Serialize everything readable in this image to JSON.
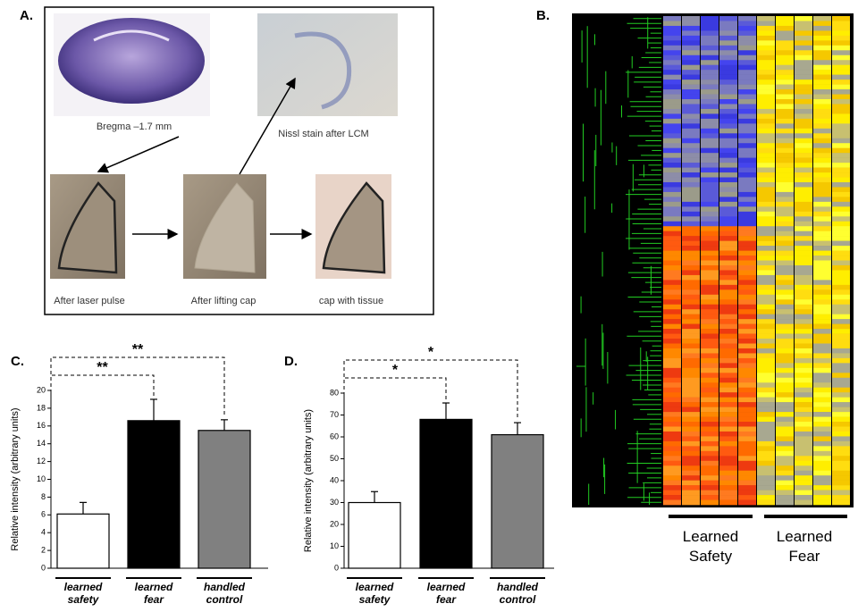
{
  "panel_a": {
    "label": "A.",
    "captions": [
      "Bregma –1.7 mm",
      "Nissl stain after LCM",
      "After laser pulse",
      "After lifting cap",
      "cap with tissue"
    ]
  },
  "panel_b": {
    "label": "B.",
    "groups": [
      "Learned Safety",
      "Learned Fear"
    ]
  },
  "chart_data": [
    {
      "type": "bar",
      "panel_label": "C.",
      "y_label": "Relative intensity (arbitrary units)",
      "categories": [
        "learned safety",
        "learned fear",
        "handled control"
      ],
      "values": [
        6.1,
        16.6,
        15.5
      ],
      "errors": [
        1.3,
        2.4,
        1.2
      ],
      "colors": [
        "#ffffff",
        "#000000",
        "#808080"
      ],
      "ylim": [
        0,
        20
      ],
      "yticks": [
        0,
        2,
        4,
        6,
        8,
        10,
        12,
        14,
        16,
        18,
        20
      ],
      "annotations": [
        "**",
        "**"
      ]
    },
    {
      "type": "bar",
      "panel_label": "D.",
      "y_label": "Relative intensity (arbitrary units)",
      "categories": [
        "learned safety",
        "learned fear",
        "handled control"
      ],
      "values": [
        30,
        68,
        61
      ],
      "errors": [
        5,
        7.5,
        5.5
      ],
      "colors": [
        "#ffffff",
        "#000000",
        "#808080"
      ],
      "ylim": [
        0,
        80
      ],
      "yticks": [
        0,
        10,
        20,
        30,
        40,
        50,
        60,
        70,
        80
      ],
      "annotations": [
        "*",
        "*"
      ]
    }
  ]
}
